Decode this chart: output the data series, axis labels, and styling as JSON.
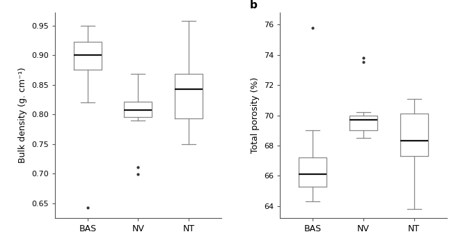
{
  "panel_a": {
    "label": "",
    "ylabel": "Bulk density (g. cm⁻¹)",
    "categories": [
      "BAS",
      "NV",
      "NT"
    ],
    "ylim": [
      0.625,
      0.972
    ],
    "yticks": [
      0.65,
      0.7,
      0.75,
      0.8,
      0.85,
      0.9,
      0.95
    ],
    "boxes": [
      {
        "q1": 0.876,
        "median": 0.9,
        "q3": 0.922,
        "whislo": 0.82,
        "whishi": 0.95,
        "fliers": [
          0.643
        ]
      },
      {
        "q1": 0.796,
        "median": 0.807,
        "q3": 0.822,
        "whislo": 0.79,
        "whishi": 0.868,
        "fliers": [
          0.699,
          0.711
        ]
      },
      {
        "q1": 0.793,
        "median": 0.843,
        "q3": 0.868,
        "whislo": 0.75,
        "whishi": 0.958,
        "fliers": []
      }
    ]
  },
  "panel_b": {
    "label": "b",
    "ylabel": "Total porosity (%)",
    "categories": [
      "BAS",
      "NV",
      "NT"
    ],
    "ylim": [
      63.2,
      76.8
    ],
    "yticks": [
      64,
      66,
      68,
      70,
      72,
      74,
      76
    ],
    "boxes": [
      {
        "q1": 65.3,
        "median": 66.1,
        "q3": 67.2,
        "whislo": 64.3,
        "whishi": 69.0,
        "fliers": [
          75.8
        ]
      },
      {
        "q1": 69.0,
        "median": 69.7,
        "q3": 70.0,
        "whislo": 68.5,
        "whishi": 70.2,
        "fliers": [
          73.5,
          73.8
        ]
      },
      {
        "q1": 67.3,
        "median": 68.3,
        "q3": 70.1,
        "whislo": 63.8,
        "whishi": 71.1,
        "fliers": []
      }
    ]
  },
  "box_color": "#888888",
  "median_color": "#111111",
  "flier_color": "#333333",
  "whisker_color": "#888888",
  "cap_color": "#888888",
  "linewidth": 0.9,
  "median_linewidth": 1.6,
  "box_width": 0.55,
  "figsize": [
    6.55,
    3.56
  ],
  "dpi": 100,
  "spine_color": "#555555",
  "tick_labelsize": 8,
  "xlabel_fontsize": 9,
  "ylabel_fontsize": 9
}
